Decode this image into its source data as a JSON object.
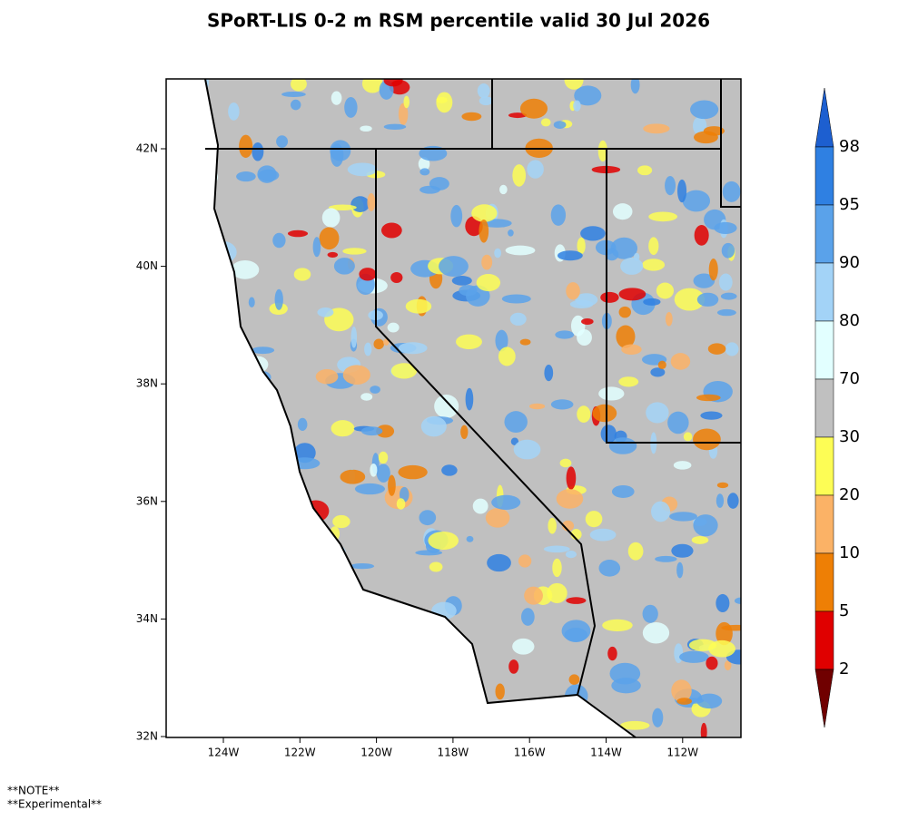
{
  "title": "SPoRT-LIS 0-2 m RSM percentile valid 30 Jul 2026",
  "map": {
    "lat_labels": [
      "42N",
      "40N",
      "38N",
      "36N",
      "34N",
      "32N"
    ],
    "lon_labels": [
      "124W",
      "122W",
      "120W",
      "118W",
      "116W",
      "114W",
      "112W"
    ]
  },
  "colorbar": {
    "levels": [
      98,
      95,
      90,
      80,
      70,
      30,
      20,
      10,
      5,
      2
    ],
    "colors": [
      "#1d5fd0",
      "#2f80e2",
      "#5aa2ea",
      "#a3d3f7",
      "#e2ffff",
      "#c0c0c0",
      "#fdfd55",
      "#fbb266",
      "#ee7f05",
      "#e00000",
      "#700000"
    ]
  },
  "notes": [
    "**NOTE**",
    "**Experimental**"
  ]
}
